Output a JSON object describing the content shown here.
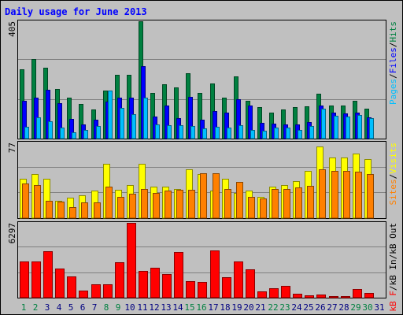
{
  "chart_data": {
    "type": "bar",
    "title": "Daily usage for June 2013",
    "categories": [
      "1",
      "2",
      "3",
      "4",
      "5",
      "6",
      "7",
      "8",
      "9",
      "10",
      "11",
      "12",
      "13",
      "14",
      "15",
      "16",
      "17",
      "18",
      "19",
      "20",
      "21",
      "22",
      "23",
      "24",
      "25",
      "26",
      "27",
      "28",
      "29",
      "30",
      "31"
    ],
    "weekend_days": [
      "1",
      "2",
      "8",
      "9",
      "15",
      "16",
      "22",
      "23",
      "29",
      "30"
    ],
    "panels": [
      {
        "id": "hits",
        "ymax_label": "405",
        "ylim": [
          0,
          405
        ],
        "legend": [
          "Pages",
          "/",
          "Files",
          "/",
          "Hits"
        ],
        "series": [
          {
            "name": "Hits",
            "color": "#008040",
            "values": [
              240,
              275,
              245,
              170,
              140,
              120,
              100,
              165,
              220,
              220,
              405,
              158,
              187,
              178,
              225,
              158,
              190,
              140,
              215,
              130,
              108,
              91,
              100,
              108,
              111,
              155,
              115,
              115,
              130,
              102,
              0
            ]
          },
          {
            "name": "Files",
            "color": "#0000ff",
            "values": [
              130,
              140,
              169,
              122,
              67,
              48,
              64,
              127,
              140,
              140,
              250,
              75,
              115,
              70,
              145,
              65,
              95,
              90,
              135,
              115,
              55,
              53,
              50,
              48,
              57,
              114,
              90,
              87,
              90,
              73,
              0
            ]
          },
          {
            "name": "Pages",
            "color": "#00bfff",
            "values": [
              40,
              73,
              60,
              37,
              23,
              29,
              43,
              165,
              107,
              85,
              140,
              48,
              45,
              45,
              43,
              35,
              40,
              38,
              46,
              30,
              27,
              37,
              37,
              31,
              43,
              103,
              80,
              75,
              82,
              70,
              0
            ]
          }
        ]
      },
      {
        "id": "visits",
        "ymax_label": "77",
        "ylim": [
          0,
          77
        ],
        "legend": [
          "Sites",
          "/",
          "Visits"
        ],
        "series": [
          {
            "name": "Visits",
            "color": "#ffff00",
            "values": [
              40,
              45,
              40,
              18,
              21,
              23,
              28,
              55,
              29,
              34,
              55,
              32,
              32,
              30,
              50,
              45,
              28,
              40,
              26,
              28,
              22,
              32,
              34,
              38,
              48,
              73,
              62,
              62,
              66,
              60,
              0
            ]
          },
          {
            "name": "Sites",
            "color": "#ff8000",
            "values": [
              35,
              34,
              18,
              17,
              11,
              16,
              16,
              32,
              22,
              25,
              30,
              26,
              28,
              29,
              29,
              46,
              46,
              30,
              37,
              22,
              20,
              30,
              30,
              31,
              33,
              50,
              48,
              48,
              47,
              45,
              0
            ]
          }
        ]
      },
      {
        "id": "kbytes",
        "ymax_label": "6297",
        "ylim": [
          0,
          6297
        ],
        "legend": [
          "kB F",
          "/",
          "kB In",
          "/",
          "kB Out"
        ],
        "series": [
          {
            "name": "kB F",
            "color": "#ff0000",
            "values": [
              3080,
              3050,
              3900,
              2430,
              1800,
              612,
              1130,
              1130,
              2950,
              6297,
              2270,
              2510,
              1960,
              3840,
              1370,
              1350,
              4010,
              1700,
              3020,
              2400,
              530,
              810,
              970,
              360,
              230,
              250,
              160,
              160,
              700,
              400,
              0
            ]
          }
        ]
      }
    ]
  },
  "colors": {
    "background": "#c0c0c0",
    "title": "#0000ff",
    "gridline": "#808080",
    "weekend_label": "#008040",
    "weekday_label": "#000080",
    "separator": "#000000"
  }
}
